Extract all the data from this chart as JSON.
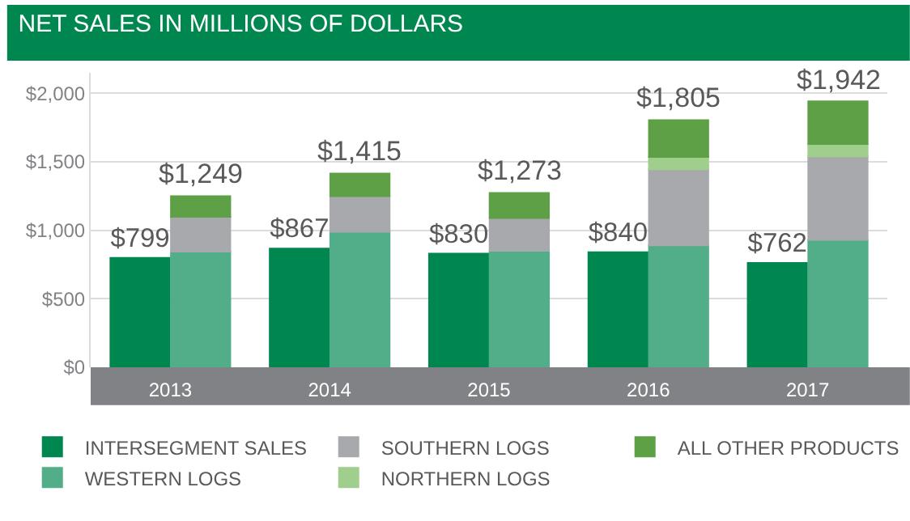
{
  "chart_data": {
    "type": "bar",
    "title": "NET SALES IN MILLIONS OF DOLLARS",
    "categories": [
      "2013",
      "2014",
      "2015",
      "2016",
      "2017"
    ],
    "series": [
      {
        "name": "INTERSEGMENT SALES",
        "color": "#00874f",
        "values": [
          799,
          867,
          830,
          840,
          762
        ],
        "value_labels": [
          "$799",
          "$867",
          "$830",
          "$840",
          "$762"
        ]
      },
      {
        "name": "WESTERN LOGS",
        "color": "#52ae88",
        "values": [
          845,
          990,
          850,
          890,
          930
        ],
        "base": [
          0,
          0,
          0,
          0,
          0
        ]
      },
      {
        "name": "SOUTHERN LOGS",
        "color": "#a7a9ac",
        "values": [
          253,
          260,
          240,
          555,
          610
        ],
        "base": [
          845,
          990,
          850,
          890,
          930
        ]
      },
      {
        "name": "NORTHERN LOGS",
        "color": "#9fce8d",
        "values": [
          null,
          null,
          null,
          90,
          90
        ],
        "base": [
          null,
          null,
          null,
          1445,
          1540
        ]
      },
      {
        "name": "ALL OTHER PRODUCTS",
        "color": "#5da045",
        "values": [
          151,
          165,
          183,
          270,
          312
        ],
        "base": [
          1098,
          1250,
          1090,
          1535,
          1630
        ]
      }
    ],
    "annotations": [
      {
        "text": "$1,249",
        "x": "2013",
        "y": 1249
      },
      {
        "text": "$1,415",
        "x": "2014",
        "y": 1415
      },
      {
        "text": "$1,273",
        "x": "2015",
        "y": 1273
      },
      {
        "text": "$1,805",
        "x": "2016",
        "y": 1805
      },
      {
        "text": "$1,942",
        "x": "2017",
        "y": 1942
      }
    ],
    "ylim": [
      0,
      2150
    ],
    "yticks": [
      {
        "value": 0,
        "label": "$0"
      },
      {
        "value": 500,
        "label": "$500"
      },
      {
        "value": 1000,
        "label": "$1,000"
      },
      {
        "value": 1500,
        "label": "$1,500"
      },
      {
        "value": 2000,
        "label": "$2,000"
      }
    ],
    "grid": "y",
    "legend": "bottom"
  }
}
